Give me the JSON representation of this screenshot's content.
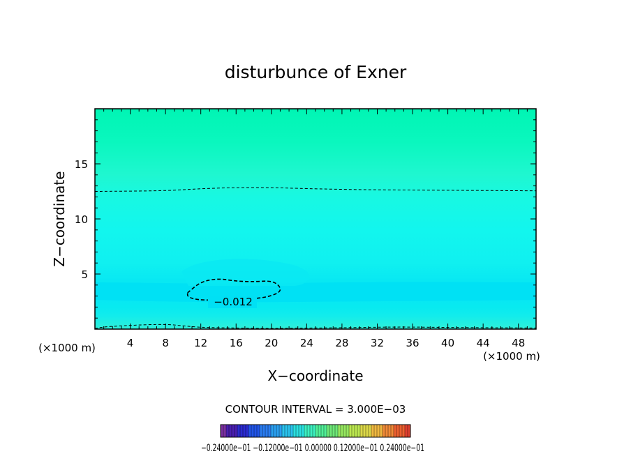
{
  "chart_data": {
    "type": "contour",
    "title": "disturbunce of Exner",
    "xlabel": "X−coordinate",
    "ylabel": "Z−coordinate",
    "x_unit_label": "(×1000 m)",
    "xlim": [
      0,
      50
    ],
    "ylim": [
      0,
      20
    ],
    "x_ticks": [
      4,
      8,
      12,
      16,
      20,
      24,
      28,
      32,
      36,
      40,
      44,
      48
    ],
    "x_tick_labels": [
      "4",
      "8",
      "12",
      "16",
      "20",
      "24",
      "28",
      "32",
      "36",
      "40",
      "44",
      "48"
    ],
    "y_ticks": [
      5,
      10,
      15
    ],
    "y_tick_labels": [
      "5",
      "10",
      "15"
    ],
    "contour_interval_text": "CONTOUR INTERVAL = 3.000E−03",
    "contour_label": "−0.012",
    "contours": [
      {
        "level": -0.012,
        "points": [
          [
            10.5,
            3.3
          ],
          [
            12,
            4.3
          ],
          [
            14,
            4.6
          ],
          [
            16,
            4.35
          ],
          [
            18,
            4.3
          ],
          [
            20,
            4.4
          ],
          [
            21,
            3.9
          ],
          [
            21,
            3.3
          ],
          [
            19,
            2.8
          ],
          [
            16,
            2.7
          ],
          [
            12,
            2.6
          ],
          [
            10.5,
            2.9
          ],
          [
            10.5,
            3.3
          ]
        ]
      },
      {
        "level": -0.003,
        "points": [
          [
            0,
            12.5
          ],
          [
            8,
            12.55
          ],
          [
            12,
            12.75
          ],
          [
            16,
            12.85
          ],
          [
            20,
            12.85
          ],
          [
            24,
            12.75
          ],
          [
            30,
            12.65
          ],
          [
            40,
            12.6
          ],
          [
            50,
            12.55
          ]
        ]
      },
      {
        "level": -0.006,
        "points": [
          [
            0,
            0.05
          ],
          [
            1,
            0.2
          ],
          [
            4,
            0.35
          ],
          [
            8,
            0.45
          ],
          [
            10,
            0.3
          ],
          [
            12,
            0.15
          ],
          [
            16,
            0.1
          ],
          [
            20,
            0.05
          ],
          [
            22,
            0.08
          ],
          [
            28,
            0.12
          ],
          [
            34,
            0.2
          ],
          [
            40,
            0.15
          ],
          [
            46,
            0.12
          ],
          [
            50,
            0.1
          ]
        ]
      }
    ],
    "colorbar": {
      "colors": [
        "#7a2fa0",
        "#4a1fb0",
        "#2b2bd0",
        "#2255e8",
        "#2a7cf0",
        "#2aa0f0",
        "#2ac3ee",
        "#2ae0e0",
        "#3cf0c0",
        "#50f098",
        "#6ee878",
        "#96e860",
        "#bce850",
        "#dcd848",
        "#f0b840",
        "#f08a38",
        "#ec6030",
        "#e04030"
      ],
      "labels_text": "−0.24000e−01  −0.12000e−01  0.00000  0.12000e−01  0.24000e−01"
    }
  }
}
